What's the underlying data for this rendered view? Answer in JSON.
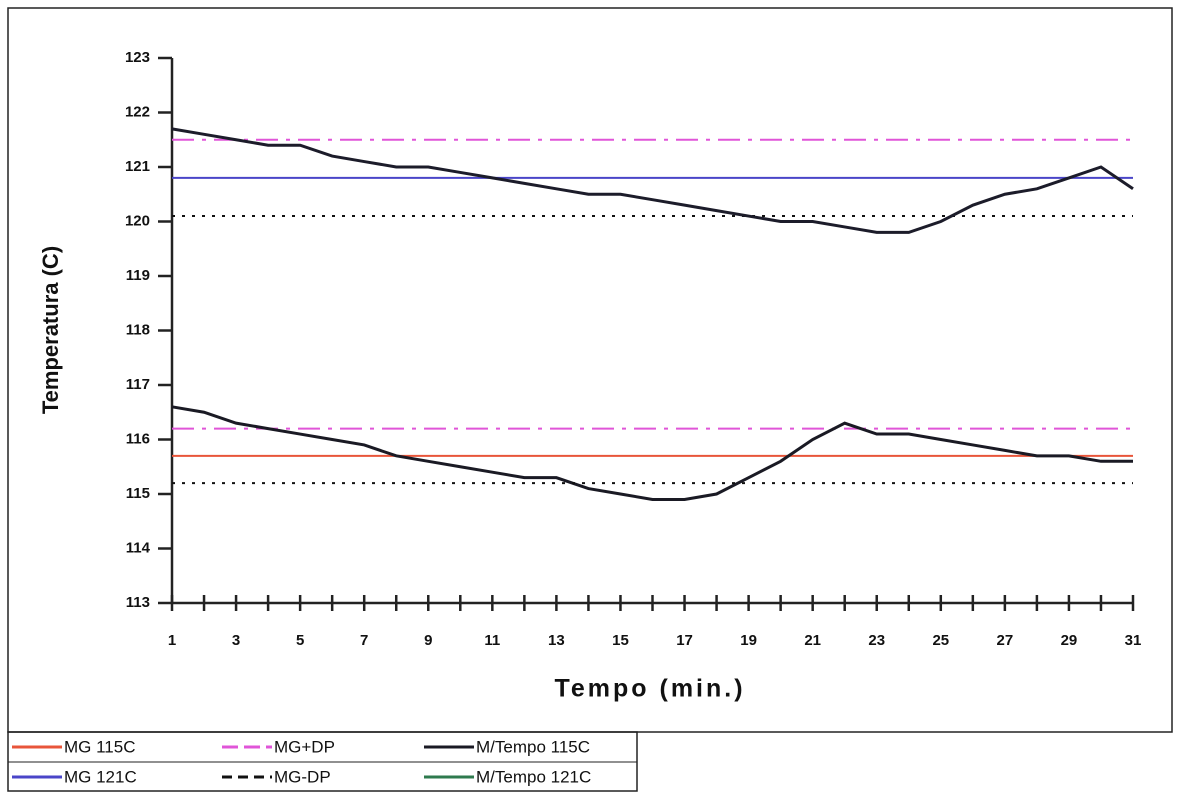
{
  "chart_data": {
    "type": "line",
    "xlabel": "Tempo (min.)",
    "ylabel": "Temperatura (C)",
    "x": [
      1,
      2,
      3,
      4,
      5,
      6,
      7,
      8,
      9,
      10,
      11,
      12,
      13,
      14,
      15,
      16,
      17,
      18,
      19,
      20,
      21,
      22,
      23,
      24,
      25,
      26,
      27,
      28,
      29,
      30,
      31
    ],
    "xlim": [
      1,
      31
    ],
    "xticks": [
      1,
      3,
      5,
      7,
      9,
      11,
      13,
      15,
      17,
      19,
      21,
      23,
      25,
      27,
      29,
      31
    ],
    "ylim": [
      113,
      123
    ],
    "yticks": [
      113,
      114,
      115,
      116,
      117,
      118,
      119,
      120,
      121,
      122,
      123
    ],
    "series": [
      {
        "name": "MG 115C",
        "color": "#e8553a",
        "style": "solid",
        "lines": [
          [
            115.7,
            115.7,
            115.7,
            115.7,
            115.7,
            115.7,
            115.7,
            115.7,
            115.7,
            115.7,
            115.7,
            115.7,
            115.7,
            115.7,
            115.7,
            115.7,
            115.7,
            115.7,
            115.7,
            115.7,
            115.7,
            115.7,
            115.7,
            115.7,
            115.7,
            115.7,
            115.7,
            115.7,
            115.7,
            115.7,
            115.7
          ]
        ]
      },
      {
        "name": "MG+DP",
        "color": "#e055d8",
        "style": "dashdot",
        "lines": [
          [
            121.5,
            121.5,
            121.5,
            121.5,
            121.5,
            121.5,
            121.5,
            121.5,
            121.5,
            121.5,
            121.5,
            121.5,
            121.5,
            121.5,
            121.5,
            121.5,
            121.5,
            121.5,
            121.5,
            121.5,
            121.5,
            121.5,
            121.5,
            121.5,
            121.5,
            121.5,
            121.5,
            121.5,
            121.5,
            121.5,
            121.5
          ],
          [
            116.2,
            116.2,
            116.2,
            116.2,
            116.2,
            116.2,
            116.2,
            116.2,
            116.2,
            116.2,
            116.2,
            116.2,
            116.2,
            116.2,
            116.2,
            116.2,
            116.2,
            116.2,
            116.2,
            116.2,
            116.2,
            116.2,
            116.2,
            116.2,
            116.2,
            116.2,
            116.2,
            116.2,
            116.2,
            116.2,
            116.2
          ]
        ]
      },
      {
        "name": "M/Tempo 115C",
        "color": "#1a1a24",
        "style": "solid",
        "lines": [
          [
            116.6,
            116.5,
            116.3,
            116.2,
            116.1,
            116.0,
            115.9,
            115.7,
            115.6,
            115.5,
            115.4,
            115.3,
            115.3,
            115.1,
            115.0,
            114.9,
            114.9,
            115.0,
            115.3,
            115.6,
            116.0,
            116.3,
            116.1,
            116.1,
            116.0,
            115.9,
            115.8,
            115.7,
            115.7,
            115.6,
            115.6
          ]
        ]
      },
      {
        "name": "MG 121C",
        "color": "#4a45c8",
        "style": "solid",
        "lines": [
          [
            120.8,
            120.8,
            120.8,
            120.8,
            120.8,
            120.8,
            120.8,
            120.8,
            120.8,
            120.8,
            120.8,
            120.8,
            120.8,
            120.8,
            120.8,
            120.8,
            120.8,
            120.8,
            120.8,
            120.8,
            120.8,
            120.8,
            120.8,
            120.8,
            120.8,
            120.8,
            120.8,
            120.8,
            120.8,
            120.8,
            120.8
          ]
        ]
      },
      {
        "name": "MG-DP",
        "color": "#111111",
        "style": "dotted",
        "lines": [
          [
            120.1,
            120.1,
            120.1,
            120.1,
            120.1,
            120.1,
            120.1,
            120.1,
            120.1,
            120.1,
            120.1,
            120.1,
            120.1,
            120.1,
            120.1,
            120.1,
            120.1,
            120.1,
            120.1,
            120.1,
            120.1,
            120.1,
            120.1,
            120.1,
            120.1,
            120.1,
            120.1,
            120.1,
            120.1,
            120.1,
            120.1
          ],
          [
            115.2,
            115.2,
            115.2,
            115.2,
            115.2,
            115.2,
            115.2,
            115.2,
            115.2,
            115.2,
            115.2,
            115.2,
            115.2,
            115.2,
            115.2,
            115.2,
            115.2,
            115.2,
            115.2,
            115.2,
            115.2,
            115.2,
            115.2,
            115.2,
            115.2,
            115.2,
            115.2,
            115.2,
            115.2,
            115.2,
            115.2
          ]
        ]
      },
      {
        "name": "M/Tempo 121C",
        "color": "#2e7a4e",
        "line_color": "#1c1c2a",
        "style": "solid",
        "lines": [
          [
            121.7,
            121.6,
            121.5,
            121.4,
            121.4,
            121.2,
            121.1,
            121.0,
            121.0,
            120.9,
            120.8,
            120.7,
            120.6,
            120.5,
            120.5,
            120.4,
            120.3,
            120.2,
            120.1,
            120.0,
            120.0,
            119.9,
            119.8,
            119.8,
            120.0,
            120.3,
            120.5,
            120.6,
            120.8,
            121.0,
            120.6
          ]
        ]
      }
    ]
  }
}
